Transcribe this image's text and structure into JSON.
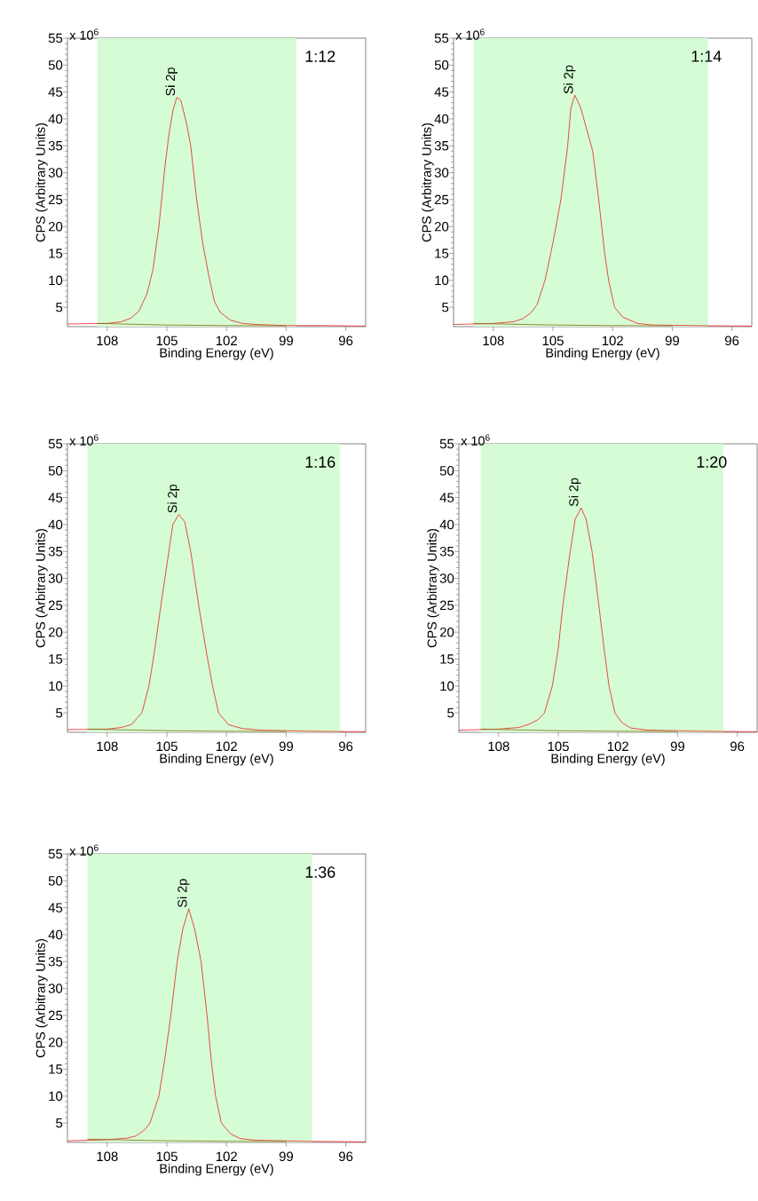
{
  "chart_data": [
    {
      "type": "line",
      "xlabel": "Binding Energy (eV)",
      "ylabel": "CPS (Arbitrary Units)",
      "xlim": [
        110,
        95
      ],
      "ylim": [
        1.4,
        55
      ],
      "xticks": [
        108,
        105,
        102,
        99,
        96
      ],
      "yticks": [
        5,
        10,
        15,
        20,
        25,
        30,
        35,
        40,
        45,
        50,
        55
      ],
      "bands": [
        {
          "axis": "x",
          "from": 108.5,
          "to": 98.5,
          "color": "#d5fcd5"
        }
      ],
      "annotations": [
        "x 10$^{6}$",
        "1:12",
        {
          "text": "Si 2p",
          "x": 104.5,
          "y": 44
        }
      ],
      "series": [
        {
          "color": "#e8211c",
          "x": [
            110,
            108,
            107.3,
            106.8,
            106.4,
            106.0,
            105.7,
            105.4,
            105.1,
            104.9,
            104.7,
            104.5,
            104.3,
            104.0,
            103.8,
            103.5,
            103.2,
            102.9,
            102.6,
            102.3,
            101.8,
            101.2,
            100.5,
            99,
            97,
            95
          ],
          "values": [
            1.9,
            2.0,
            2.3,
            3.0,
            4.3,
            7.5,
            12,
            20,
            31,
            37,
            41.5,
            44,
            43.5,
            39,
            35,
            25,
            17,
            11,
            6,
            4,
            2.6,
            2.0,
            1.8,
            1.6,
            1.6,
            1.5
          ]
        },
        {
          "color": "#8b6a14",
          "x": [
            108.5,
            105,
            102,
            99
          ],
          "values": [
            2.0,
            1.7,
            1.6,
            1.55
          ]
        }
      ]
    },
    {
      "type": "line",
      "xlabel": "Binding Energy (eV)",
      "ylabel": "CPS (Arbitrary Units)",
      "xlim": [
        110,
        95
      ],
      "ylim": [
        1.4,
        55
      ],
      "xticks": [
        108,
        105,
        102,
        99,
        96
      ],
      "yticks": [
        5,
        10,
        15,
        20,
        25,
        30,
        35,
        40,
        45,
        50,
        55
      ],
      "bands": [
        {
          "axis": "x",
          "from": 109,
          "to": 97.2,
          "color": "#d5fcd5"
        }
      ],
      "annotations": [
        "x 10$^{6}$",
        "1:14",
        {
          "text": "Si 2p",
          "x": 103.9,
          "y": 44.4
        }
      ],
      "series": [
        {
          "color": "#e8211c",
          "x": [
            110,
            108,
            107,
            106.5,
            106.1,
            105.8,
            105.4,
            105.0,
            104.6,
            104.26,
            104.1,
            103.9,
            103.6,
            103.3,
            103.0,
            102.7,
            102.4,
            102.2,
            101.9,
            101.5,
            100.75,
            100,
            98,
            95
          ],
          "values": [
            1.8,
            2.0,
            2.3,
            2.9,
            4.0,
            5.5,
            10,
            17,
            25,
            35,
            42,
            44.4,
            42,
            38,
            34,
            25,
            15,
            10,
            5,
            3.2,
            2.0,
            1.7,
            1.6,
            1.5
          ]
        },
        {
          "color": "#8b6a14",
          "x": [
            109,
            105,
            102,
            99
          ],
          "values": [
            2.0,
            1.7,
            1.6,
            1.55
          ]
        }
      ]
    },
    {
      "type": "line",
      "xlabel": "Binding Energy (eV)",
      "ylabel": "CPS (Arbitrary Units)",
      "xlim": [
        110,
        95
      ],
      "ylim": [
        1.4,
        55
      ],
      "xticks": [
        108,
        105,
        102,
        99,
        96
      ],
      "yticks": [
        5,
        10,
        15,
        20,
        25,
        30,
        35,
        40,
        45,
        50,
        55
      ],
      "bands": [
        {
          "axis": "x",
          "from": 109,
          "to": 96.3,
          "color": "#d5fcd5"
        }
      ],
      "annotations": [
        "x 10$^{6}$",
        "1:16",
        {
          "text": "Si 2p",
          "x": 104.4,
          "y": 41.9
        }
      ],
      "series": [
        {
          "color": "#e8211c",
          "x": [
            110,
            108,
            107.3,
            106.8,
            106.26,
            105.9,
            105.6,
            105.3,
            104.9,
            104.7,
            104.4,
            104.1,
            103.8,
            103.4,
            103.0,
            102.7,
            102.4,
            101.9,
            101.2,
            100.3,
            98,
            95
          ],
          "values": [
            1.9,
            2.0,
            2.3,
            2.8,
            5,
            10,
            17,
            25,
            35,
            40,
            41.9,
            40.5,
            35,
            25,
            16,
            10,
            5,
            2.8,
            2.1,
            1.8,
            1.6,
            1.5
          ]
        },
        {
          "color": "#8b6a14",
          "x": [
            109,
            105,
            102,
            99
          ],
          "values": [
            2.0,
            1.7,
            1.6,
            1.55
          ]
        }
      ]
    },
    {
      "type": "line",
      "xlabel": "Binding Energy (eV)",
      "ylabel": "CPS (Arbitrary Units)",
      "xlim": [
        110,
        95
      ],
      "ylim": [
        1.4,
        55
      ],
      "xticks": [
        108,
        105,
        102,
        99,
        96
      ],
      "yticks": [
        5,
        10,
        15,
        20,
        25,
        30,
        35,
        40,
        45,
        50,
        55
      ],
      "bands": [
        {
          "axis": "x",
          "from": 108.9,
          "to": 96.7,
          "color": "#d5fcd5"
        }
      ],
      "annotations": [
        "x 10$^{6}$",
        "1:20",
        {
          "text": "Si 2p",
          "x": 103.9,
          "y": 43.1
        }
      ],
      "series": [
        {
          "color": "#e8211c",
          "x": [
            110,
            108,
            107,
            106.8,
            106.4,
            106.0,
            105.7,
            105.3,
            105.0,
            104.77,
            104.4,
            104.15,
            103.85,
            103.6,
            103.3,
            102.96,
            102.7,
            102.45,
            102.15,
            101.8,
            101.35,
            100.5,
            98,
            95
          ],
          "values": [
            1.8,
            2.0,
            2.3,
            2.5,
            3.0,
            3.8,
            5,
            10,
            17,
            25,
            35,
            41,
            43.1,
            41,
            35,
            25,
            17,
            10,
            5,
            3.2,
            2.2,
            1.8,
            1.6,
            1.5
          ]
        },
        {
          "color": "#8b6a14",
          "x": [
            108.9,
            105,
            102,
            99
          ],
          "values": [
            2.0,
            1.7,
            1.6,
            1.55
          ]
        }
      ]
    },
    {
      "type": "line",
      "xlabel": "Binding Energy (eV)",
      "ylabel": "CPS (Arbitrary Units)",
      "xlim": [
        110,
        95
      ],
      "ylim": [
        1.4,
        55
      ],
      "xticks": [
        108,
        105,
        102,
        99,
        96
      ],
      "yticks": [
        5,
        10,
        15,
        20,
        25,
        30,
        35,
        40,
        45,
        50,
        55
      ],
      "bands": [
        {
          "axis": "x",
          "from": 109,
          "to": 97.7,
          "color": "#d5fcd5"
        }
      ],
      "annotations": [
        "x 10$^{6}$",
        "1:36",
        {
          "text": "Si 2p",
          "x": 103.9,
          "y": 44.8
        }
      ],
      "series": [
        {
          "color": "#e8211c",
          "x": [
            110,
            108,
            107,
            106.55,
            106.1,
            105.85,
            105.4,
            105.1,
            104.8,
            104.48,
            104.2,
            103.9,
            103.6,
            103.28,
            102.98,
            102.75,
            102.55,
            102.26,
            101.8,
            101.3,
            100.5,
            98,
            95
          ],
          "values": [
            1.7,
            1.9,
            2.2,
            2.6,
            3.8,
            5,
            10,
            17,
            25,
            35,
            41,
            44.8,
            41,
            35,
            25,
            16,
            10,
            5,
            3.0,
            2.1,
            1.8,
            1.6,
            1.5
          ]
        },
        {
          "color": "#8b6a14",
          "x": [
            109,
            105,
            102,
            99
          ],
          "values": [
            2.0,
            1.7,
            1.6,
            1.55
          ]
        }
      ]
    }
  ]
}
